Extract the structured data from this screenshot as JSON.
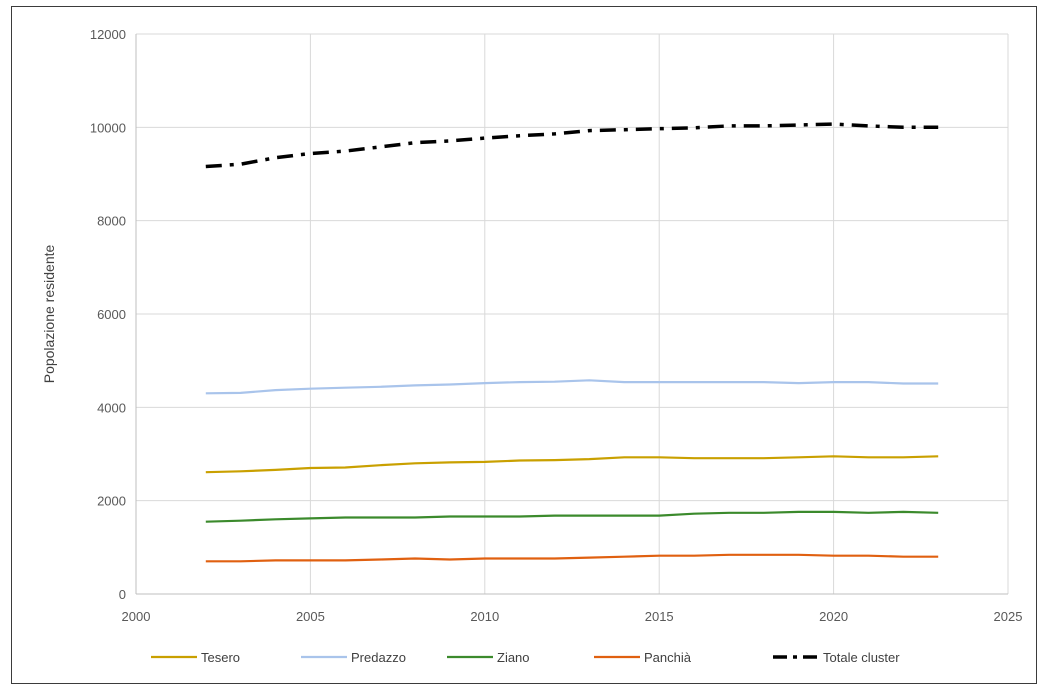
{
  "chart_data": {
    "type": "line",
    "ylabel": "Popolazione residente",
    "xlabel": "",
    "xlim": [
      2000,
      2025
    ],
    "ylim": [
      0,
      12000
    ],
    "x_ticks": [
      2000,
      2005,
      2010,
      2015,
      2020,
      2025
    ],
    "y_ticks": [
      0,
      2000,
      4000,
      6000,
      8000,
      10000,
      12000
    ],
    "grid": true,
    "legend_position": "bottom",
    "x": [
      2002,
      2003,
      2004,
      2005,
      2006,
      2007,
      2008,
      2009,
      2010,
      2011,
      2012,
      2013,
      2014,
      2015,
      2016,
      2017,
      2018,
      2019,
      2020,
      2021,
      2022,
      2023
    ],
    "series": [
      {
        "name": "Tesero",
        "color": "#c9a000",
        "style": "solid",
        "values": [
          2610,
          2630,
          2660,
          2700,
          2710,
          2760,
          2800,
          2820,
          2830,
          2860,
          2870,
          2890,
          2930,
          2930,
          2910,
          2910,
          2910,
          2930,
          2950,
          2930,
          2930,
          2950
        ]
      },
      {
        "name": "Predazzo",
        "color": "#a9c4eb",
        "style": "solid",
        "values": [
          4300,
          4310,
          4370,
          4400,
          4420,
          4440,
          4470,
          4490,
          4520,
          4540,
          4550,
          4580,
          4540,
          4540,
          4540,
          4540,
          4540,
          4520,
          4540,
          4540,
          4510,
          4510
        ]
      },
      {
        "name": "Ziano",
        "color": "#3b8a2c",
        "style": "solid",
        "values": [
          1550,
          1570,
          1600,
          1620,
          1640,
          1640,
          1640,
          1660,
          1660,
          1660,
          1680,
          1680,
          1680,
          1680,
          1720,
          1740,
          1740,
          1760,
          1760,
          1740,
          1760,
          1740
        ]
      },
      {
        "name": "Panchià",
        "color": "#e06010",
        "style": "solid",
        "values": [
          700,
          700,
          720,
          720,
          720,
          740,
          760,
          740,
          760,
          760,
          760,
          780,
          800,
          820,
          820,
          840,
          840,
          840,
          820,
          820,
          800,
          800
        ]
      },
      {
        "name": "Totale cluster",
        "color": "#000000",
        "style": "dashdot",
        "values": [
          9160,
          9210,
          9350,
          9440,
          9490,
          9580,
          9670,
          9710,
          9770,
          9820,
          9860,
          9930,
          9950,
          9970,
          9990,
          10030,
          10030,
          10050,
          10070,
          10030,
          10000,
          10000
        ]
      }
    ]
  }
}
